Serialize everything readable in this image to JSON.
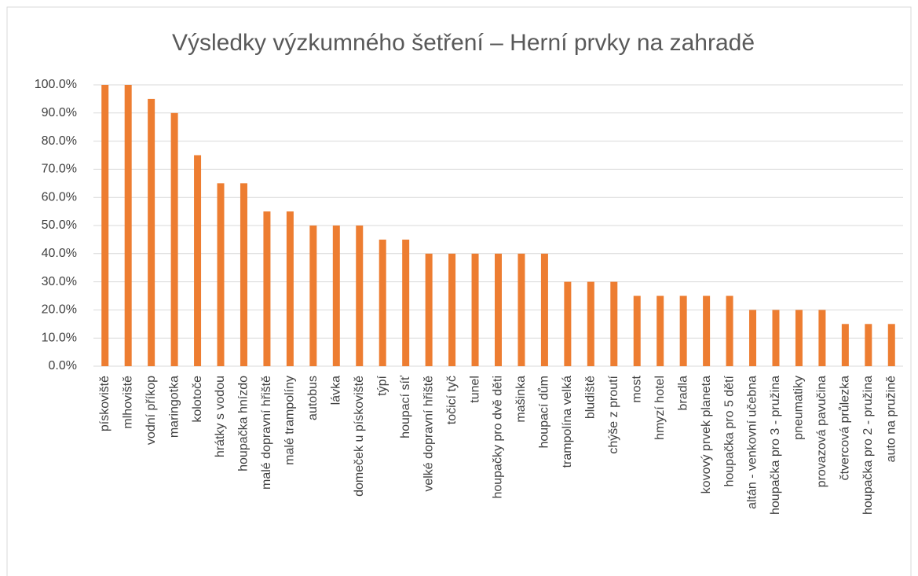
{
  "chart_data": {
    "type": "bar",
    "title": "Výsledky výzkumného šetření – Herní prvky na zahradě",
    "categories": [
      "pískoviště",
      "mlhoviště",
      "vodní příkop",
      "maringotka",
      "kolotoče",
      "hrátky s vodou",
      "houpačka hnízdo",
      "malé dopravní hřiště",
      "malé trampolíny",
      "autobus",
      "lávka",
      "domeček u pískoviště",
      "týpí",
      "houpací síť",
      "velké dopravní hřiště",
      "točicí tyč",
      "tunel",
      "houpačky pro dvě děti",
      "mašinka",
      "houpací dům",
      "trampolína velká",
      "bludiště",
      "chýše z proutí",
      "most",
      "hmyzí hotel",
      "bradla",
      "kovový prvek planeta",
      "houpačka pro 5 dětí",
      "altán - venkovní učebna",
      "houpačka pro 3 - pružina",
      "pneumatiky",
      "provazová pavučina",
      "čtvercová průlezka",
      "houpačka pro 2 - pružina",
      "auto na pružině"
    ],
    "values": [
      100,
      100,
      95,
      90,
      75,
      65,
      65,
      55,
      55,
      50,
      50,
      50,
      45,
      45,
      40,
      40,
      40,
      40,
      40,
      40,
      30,
      30,
      30,
      25,
      25,
      25,
      25,
      25,
      20,
      20,
      20,
      20,
      15,
      15,
      15
    ],
    "color": "#ed7d31",
    "ylim": [
      0,
      100
    ],
    "yticks": [
      {
        "value": 0,
        "label": "0.0%"
      },
      {
        "value": 10,
        "label": "10.0%"
      },
      {
        "value": 20,
        "label": "20.0%"
      },
      {
        "value": 30,
        "label": "30.0%"
      },
      {
        "value": 40,
        "label": "40.0%"
      },
      {
        "value": 50,
        "label": "50.0%"
      },
      {
        "value": 60,
        "label": "60.0%"
      },
      {
        "value": 70,
        "label": "70.0%"
      },
      {
        "value": 80,
        "label": "80.0%"
      },
      {
        "value": 90,
        "label": "90.0%"
      },
      {
        "value": 100,
        "label": "100.0%"
      }
    ],
    "grid": true
  }
}
